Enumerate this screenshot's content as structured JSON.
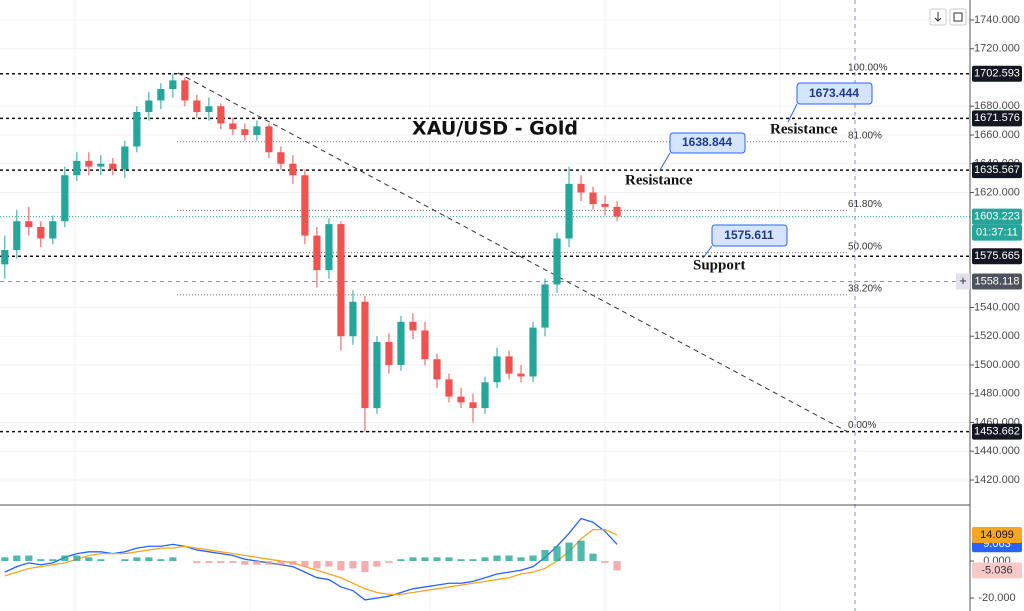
{
  "chart_data": {
    "type": "candlestick",
    "title": "XAU/USD - Gold",
    "annotations": [
      "Resistance",
      "Resistance",
      "Support"
    ],
    "callouts": [
      1673.444,
      1638.844,
      1575.611
    ],
    "xlim": [
      -0.4,
      80.4
    ],
    "ylim": [
      1402.6,
      1753.9
    ],
    "yticks": [
      {
        "value": 1740,
        "label": "1740.000"
      },
      {
        "value": 1720,
        "label": "1720.000"
      },
      {
        "value": 1680,
        "label": "1680.000"
      },
      {
        "value": 1660,
        "label": "1660.000"
      },
      {
        "value": 1640,
        "label": "1640.000"
      },
      {
        "value": 1620,
        "label": "1620.000"
      },
      {
        "value": 1540,
        "label": "1540.000"
      },
      {
        "value": 1520,
        "label": "1520.000"
      },
      {
        "value": 1500,
        "label": "1500.000"
      },
      {
        "value": 1480,
        "label": "1480.000"
      },
      {
        "value": 1460,
        "label": "1460.000"
      },
      {
        "value": 1440,
        "label": "1440.000"
      },
      {
        "value": 1420,
        "label": "1420.000"
      }
    ],
    "levels": [
      1702.593,
      1671.576,
      1635.567,
      1575.665,
      1453.662
    ],
    "crosshair": 1558.118,
    "countdown": "01:37:11",
    "fib": [
      {
        "value": 100,
        "label": "100.00%"
      },
      {
        "value": 81,
        "label": "81.00%"
      },
      {
        "value": 61.8,
        "label": "61.80%"
      },
      {
        "value": 50,
        "label": "50.00%"
      },
      {
        "value": 38.2,
        "label": "38.20%"
      },
      {
        "value": 0,
        "label": "0.00%"
      }
    ],
    "up_color": "#26a69a",
    "down_color": "#ef5350",
    "open": [
      1570,
      1580,
      1600,
      1596,
      1588,
      1600,
      1632,
      1642,
      1638,
      1640,
      1636,
      1652,
      1676,
      1684,
      1692,
      1698,
      1684,
      1676,
      1680,
      1668,
      1664,
      1660,
      1666,
      1648,
      1640,
      1632,
      1590,
      1566,
      1598,
      1520,
      1544,
      1470,
      1516,
      1500,
      1530,
      1524,
      1504,
      1490,
      1478,
      1474,
      1470,
      1488,
      1506,
      1494,
      1492,
      1526,
      1556,
      1588,
      1626,
      1620,
      1612,
      1610
    ],
    "high": [
      1590,
      1608,
      1610,
      1600,
      1604,
      1638,
      1648,
      1648,
      1646,
      1644,
      1656,
      1680,
      1690,
      1696,
      1702.6,
      1700,
      1688,
      1686,
      1682,
      1672,
      1668,
      1670,
      1668,
      1652,
      1646,
      1636,
      1596,
      1602,
      1600,
      1552,
      1548,
      1520,
      1522,
      1534,
      1536,
      1530,
      1508,
      1494,
      1484,
      1480,
      1492,
      1512,
      1510,
      1500,
      1530,
      1560,
      1592,
      1638,
      1632,
      1624,
      1618,
      1614
    ],
    "low": [
      1560,
      1574,
      1590,
      1582,
      1584,
      1596,
      1628,
      1632,
      1632,
      1632,
      1630,
      1648,
      1670,
      1678,
      1686,
      1680,
      1672,
      1670,
      1664,
      1660,
      1656,
      1656,
      1644,
      1636,
      1626,
      1584,
      1554,
      1560,
      1510,
      1514,
      1453.7,
      1466,
      1494,
      1496,
      1518,
      1500,
      1484,
      1474,
      1470,
      1460,
      1466,
      1484,
      1490,
      1488,
      1488,
      1520,
      1550,
      1582,
      1614,
      1608,
      1604,
      1600
    ],
    "close": [
      1580,
      1600,
      1596,
      1588,
      1600,
      1632,
      1642,
      1638,
      1640,
      1636,
      1652,
      1676,
      1684,
      1692,
      1698,
      1684,
      1676,
      1680,
      1668,
      1664,
      1660,
      1666,
      1648,
      1640,
      1632,
      1590,
      1566,
      1598,
      1520,
      1544,
      1470,
      1516,
      1500,
      1530,
      1524,
      1504,
      1490,
      1478,
      1474,
      1470,
      1488,
      1506,
      1494,
      1492,
      1526,
      1556,
      1588,
      1626,
      1620,
      1612,
      1610,
      1603.223
    ],
    "y2lim": [
      -27,
      30.3
    ],
    "y2ticks": [
      {
        "value": 0,
        "label": "0.000"
      },
      {
        "value": -20,
        "label": "-20.000"
      }
    ],
    "series": [
      {
        "name": "MACD",
        "color": "#2962ff",
        "axis": "y2",
        "values": [
          -6,
          -3,
          -1,
          -2,
          -1,
          2,
          4,
          5,
          5,
          4,
          5,
          7,
          8,
          8,
          9,
          8,
          6,
          5,
          4,
          3,
          1,
          0,
          -1,
          -2,
          -3,
          -6,
          -9,
          -10,
          -14,
          -16,
          -21,
          -20,
          -19,
          -17,
          -15,
          -14,
          -13,
          -12,
          -12,
          -11,
          -9,
          -7,
          -6,
          -5,
          -3,
          2,
          8,
          15,
          23,
          21,
          16,
          9.063
        ]
      },
      {
        "name": "Signal",
        "color": "#f5a623",
        "axis": "y2",
        "values": [
          -8,
          -6,
          -4,
          -3,
          -2,
          -1,
          1,
          3,
          4,
          4,
          4,
          5,
          6,
          7,
          7,
          8,
          7,
          6,
          5,
          4,
          3,
          2,
          1,
          0,
          -1,
          -3,
          -5,
          -7,
          -9,
          -12,
          -15,
          -17,
          -18,
          -18,
          -17,
          -16,
          -15,
          -14,
          -13,
          -12,
          -11,
          -10,
          -9,
          -7,
          -6,
          -4,
          0,
          5,
          12,
          17,
          17,
          14.099
        ]
      },
      {
        "name": "Histogram",
        "color": "#26a69a",
        "axis": "y2",
        "values": [
          2,
          3,
          3,
          1,
          1,
          3,
          3,
          2,
          1,
          0,
          1,
          2,
          2,
          1,
          2,
          0,
          -1,
          -1,
          -1,
          -1,
          -2,
          -2,
          -2,
          -2,
          -2,
          -3,
          -4,
          -3,
          -5,
          -4,
          -6,
          -3,
          -1,
          1,
          2,
          2,
          2,
          2,
          1,
          1,
          2,
          3,
          3,
          2,
          3,
          6,
          8,
          10,
          11,
          4,
          -1,
          -5.036
        ]
      }
    ]
  }
}
